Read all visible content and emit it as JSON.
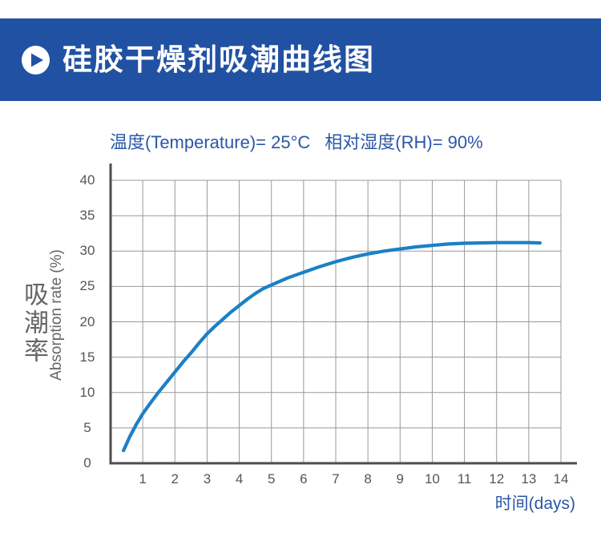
{
  "banner": {
    "title": "硅胶干燥剂吸潮曲线图",
    "icon": "play-icon",
    "bg_color": "#2151a3",
    "text_color": "#ffffff"
  },
  "subtitle": {
    "temperature": "温度(Temperature)= 25°C",
    "humidity": "相对湿度(RH)= 90%",
    "color": "#2b57a7"
  },
  "colors": {
    "curve": "#1b80c6",
    "grid": "#999999",
    "axis": "#4d4d4d",
    "tick_text": "#555555",
    "axis_label_gray": "#666666",
    "blue_text": "#2b57a7"
  },
  "chart_data": {
    "type": "line",
    "title": "",
    "xlabel": "时间(days)",
    "ylabel_cn": "吸潮率",
    "ylabel_en": "Absorption rate (%)",
    "xlim": [
      0,
      14
    ],
    "ylim": [
      0,
      40
    ],
    "x_ticks": [
      1,
      2,
      3,
      4,
      5,
      6,
      7,
      8,
      9,
      10,
      11,
      12,
      13,
      14
    ],
    "y_ticks": [
      0,
      5,
      10,
      15,
      20,
      25,
      30,
      35,
      40
    ],
    "grid": true,
    "legend": "none",
    "series": [
      {
        "name": "absorption-curve",
        "x": [
          0.4,
          0.6,
          0.8,
          1,
          1.25,
          1.5,
          1.75,
          2,
          2.25,
          2.5,
          2.75,
          3,
          3.25,
          3.5,
          3.75,
          4,
          4.25,
          4.5,
          4.75,
          5,
          5.5,
          6,
          6.5,
          7,
          7.5,
          8,
          8.5,
          9,
          9.5,
          10,
          10.5,
          11,
          11.5,
          12,
          12.5,
          13,
          13.35
        ],
        "y": [
          1.8,
          3.8,
          5.5,
          7.0,
          8.6,
          10.1,
          11.5,
          12.9,
          14.3,
          15.6,
          17.0,
          18.3,
          19.4,
          20.4,
          21.4,
          22.3,
          23.2,
          24.0,
          24.7,
          25.2,
          26.2,
          27.0,
          27.8,
          28.5,
          29.1,
          29.6,
          30.0,
          30.3,
          30.6,
          30.8,
          31.0,
          31.1,
          31.15,
          31.2,
          31.2,
          31.2,
          31.15
        ]
      }
    ]
  }
}
